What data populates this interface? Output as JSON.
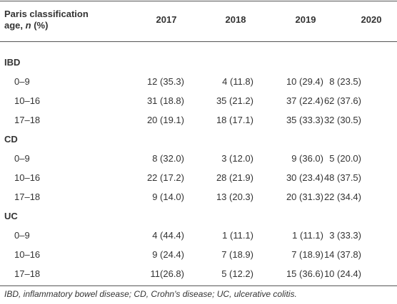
{
  "table": {
    "header": {
      "label": [
        "Paris classification",
        "age,",
        "n",
        "(%)"
      ],
      "years": [
        "2017",
        "2018",
        "2019",
        "2020"
      ]
    },
    "groups": [
      {
        "name": "IBD",
        "rows": [
          {
            "age": "0–9",
            "values": [
              "12 (35.3)",
              "4 (11.8)",
              "10 (29.4)",
              "8 (23.5)"
            ]
          },
          {
            "age": "10–16",
            "values": [
              "31 (18.8)",
              "35 (21.2)",
              "37 (22.4)",
              "62 (37.6)"
            ]
          },
          {
            "age": "17–18",
            "values": [
              "20 (19.1)",
              "18 (17.1)",
              "35 (33.3)",
              "32 (30.5)"
            ]
          }
        ]
      },
      {
        "name": "CD",
        "rows": [
          {
            "age": "0–9",
            "values": [
              "8 (32.0)",
              "3 (12.0)",
              "9 (36.0)",
              "5 (20.0)"
            ]
          },
          {
            "age": "10–16",
            "values": [
              "22 (17.2)",
              "28 (21.9)",
              "30 (23.4)",
              "48 (37.5)"
            ]
          },
          {
            "age": "17–18",
            "values": [
              "9 (14.0)",
              "13 (20.3)",
              "20 (31.3)",
              "22 (34.4)"
            ]
          }
        ]
      },
      {
        "name": "UC",
        "rows": [
          {
            "age": "0–9",
            "values": [
              "4 (44.4)",
              "1 (11.1)",
              "1 (11.1)",
              "3 (33.3)"
            ]
          },
          {
            "age": "10–16",
            "values": [
              "9 (24.4)",
              "7 (18.9)",
              "7 (18.9)",
              "14 (37.8)"
            ]
          },
          {
            "age": "17–18",
            "values": [
              "11(26.8)",
              "5 (12.2)",
              "15 (36.6)",
              "10 (24.4)"
            ]
          }
        ]
      }
    ],
    "footnote": "IBD, inflammatory bowel disease; CD, Crohn's disease; UC, ulcerative colitis."
  }
}
